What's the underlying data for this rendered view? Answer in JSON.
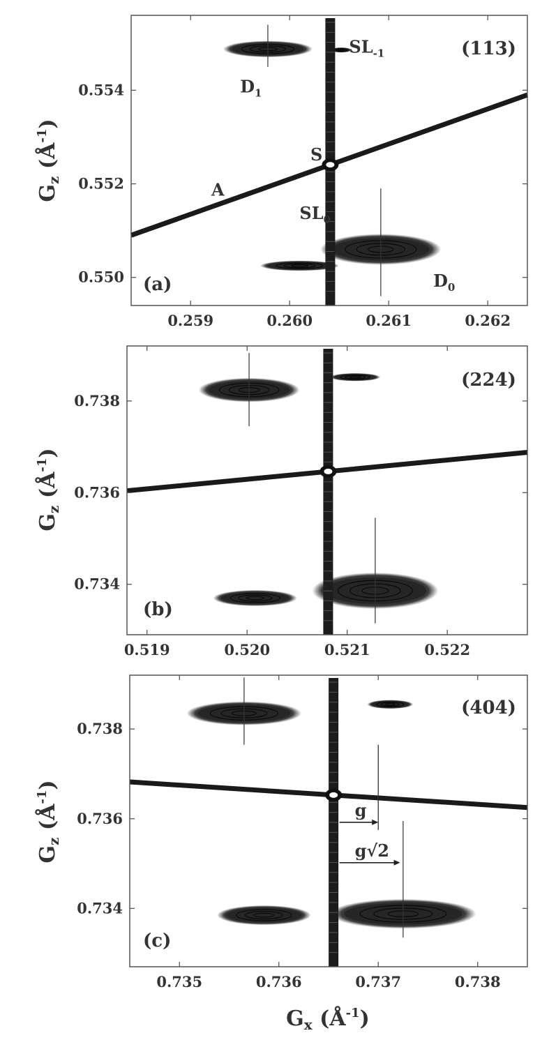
{
  "figure": {
    "xlabel": "G",
    "xlabel_sub": "x",
    "xlabel_unit": "(Å",
    "xlabel_sup": "-1",
    "xlabel_close": ")",
    "ylabel": "G",
    "ylabel_sub": "z",
    "ylabel_unit": "(Å",
    "ylabel_sup": "-1",
    "ylabel_close": ")"
  },
  "chart_data": [
    {
      "type": "heatmap",
      "reflection": "(113)",
      "panel_label": "(a)",
      "xlim": [
        0.2584,
        0.2624
      ],
      "ylim": [
        0.5494,
        0.5556
      ],
      "xticks": [
        {
          "value": 0.259,
          "label": "0.259"
        },
        {
          "value": 0.26,
          "label": "0.260"
        },
        {
          "value": 0.261,
          "label": "0.261"
        },
        {
          "value": 0.262,
          "label": "0.262"
        }
      ],
      "yticks": [
        {
          "value": 0.55,
          "label": "0.550"
        },
        {
          "value": 0.552,
          "label": "0.552"
        },
        {
          "value": 0.554,
          "label": "0.554"
        }
      ],
      "streak_x": 0.26041,
      "analyzer_line": {
        "x1": 0.2584,
        "y1": 0.5509,
        "x2": 0.2624,
        "y2": 0.5539
      },
      "peaks": [
        {
          "name": "D1",
          "x": 0.25978,
          "y": 0.55488,
          "rx": 0.00043,
          "ry": 0.00016,
          "mark": {
            "y1": 0.5545,
            "y2": 0.5554
          }
        },
        {
          "name": "D0",
          "x": 0.26092,
          "y": 0.5506,
          "rx": 0.00058,
          "ry": 0.0003,
          "mark": {
            "y1": 0.5496,
            "y2": 0.5519
          }
        },
        {
          "name": "SL0-left",
          "x": 0.2601,
          "y": 0.55025,
          "rx": 0.00038,
          "ry": 0.0001
        },
        {
          "name": "SL-1-small",
          "x": 0.26052,
          "y": 0.55486,
          "rx": 0.0001,
          "ry": 5e-05
        }
      ],
      "annotations": [
        {
          "text": "D",
          "sub": "1",
          "x": 0.2595,
          "y": 0.55395
        },
        {
          "text": "SL",
          "sub": "-1",
          "x": 0.2606,
          "y": 0.5548
        },
        {
          "text": "S",
          "x": 0.26021,
          "y": 0.5525
        },
        {
          "text": "A",
          "x": 0.25921,
          "y": 0.55175
        },
        {
          "text": "SL",
          "sub": "0",
          "x": 0.2601,
          "y": 0.55125
        },
        {
          "text": "D",
          "sub": "0",
          "x": 0.26145,
          "y": 0.5498
        }
      ]
    },
    {
      "type": "heatmap",
      "reflection": "(224)",
      "panel_label": "(b)",
      "xlim": [
        0.5188,
        0.5228
      ],
      "ylim": [
        0.7329,
        0.7392
      ],
      "xticks": [
        {
          "value": 0.519,
          "label": "0.519"
        },
        {
          "value": 0.52,
          "label": "0.520"
        },
        {
          "value": 0.521,
          "label": "0.521"
        },
        {
          "value": 0.522,
          "label": "0.522"
        }
      ],
      "yticks": [
        {
          "value": 0.734,
          "label": "0.734"
        },
        {
          "value": 0.736,
          "label": "0.736"
        },
        {
          "value": 0.738,
          "label": "0.738"
        }
      ],
      "streak_x": 0.52081,
      "analyzer_line": {
        "x1": 0.5188,
        "y1": 0.73604,
        "x2": 0.5228,
        "y2": 0.73688
      },
      "peaks": [
        {
          "name": "D1",
          "x": 0.52002,
          "y": 0.73824,
          "rx": 0.00048,
          "ry": 0.00024,
          "mark": {
            "y1": 0.73745,
            "y2": 0.73905
          }
        },
        {
          "name": "D0",
          "x": 0.52128,
          "y": 0.73386,
          "rx": 0.0006,
          "ry": 0.00036,
          "mark": {
            "y1": 0.73315,
            "y2": 0.73545
          }
        },
        {
          "name": "SL0-left",
          "x": 0.52008,
          "y": 0.7337,
          "rx": 0.0004,
          "ry": 0.00016
        },
        {
          "name": "SL-1-small",
          "x": 0.52108,
          "y": 0.73852,
          "rx": 0.00024,
          "ry": 8e-05
        }
      ],
      "annotations": []
    },
    {
      "type": "heatmap",
      "reflection": "(404)",
      "panel_label": "(c)",
      "xlim": [
        0.7345,
        0.7385
      ],
      "ylim": [
        0.7327,
        0.7392
      ],
      "xticks": [
        {
          "value": 0.735,
          "label": "0.735"
        },
        {
          "value": 0.736,
          "label": "0.736"
        },
        {
          "value": 0.737,
          "label": "0.737"
        },
        {
          "value": 0.738,
          "label": "0.738"
        }
      ],
      "yticks": [
        {
          "value": 0.734,
          "label": "0.734"
        },
        {
          "value": 0.736,
          "label": "0.736"
        },
        {
          "value": 0.738,
          "label": "0.738"
        }
      ],
      "streak_x": 0.73655,
      "analyzer_line": {
        "x1": 0.7345,
        "y1": 0.73682,
        "x2": 0.7385,
        "y2": 0.73625
      },
      "peaks": [
        {
          "name": "D1",
          "x": 0.73565,
          "y": 0.73835,
          "rx": 0.00055,
          "ry": 0.00024,
          "mark": {
            "y1": 0.73765,
            "y2": 0.73915
          }
        },
        {
          "name": "D0",
          "x": 0.73725,
          "y": 0.73388,
          "rx": 0.0007,
          "ry": 0.0003,
          "mark": {
            "y1": 0.73335,
            "y2": 0.73595
          }
        },
        {
          "name": "SL0-left",
          "x": 0.73585,
          "y": 0.73385,
          "rx": 0.00045,
          "ry": 0.0002
        },
        {
          "name": "SL-1-small",
          "x": 0.73712,
          "y": 0.73855,
          "rx": 0.00022,
          "ry": 9e-05
        }
      ],
      "g_marker": {
        "x": 0.737,
        "y1": 0.73575,
        "y2": 0.73765
      },
      "arrows": [
        {
          "label": "g",
          "x1": 0.73661,
          "x2": 0.737,
          "y": 0.73592
        },
        {
          "label": "g√2",
          "x1": 0.73661,
          "x2": 0.73722,
          "y": 0.73502
        }
      ],
      "annotations": []
    }
  ]
}
